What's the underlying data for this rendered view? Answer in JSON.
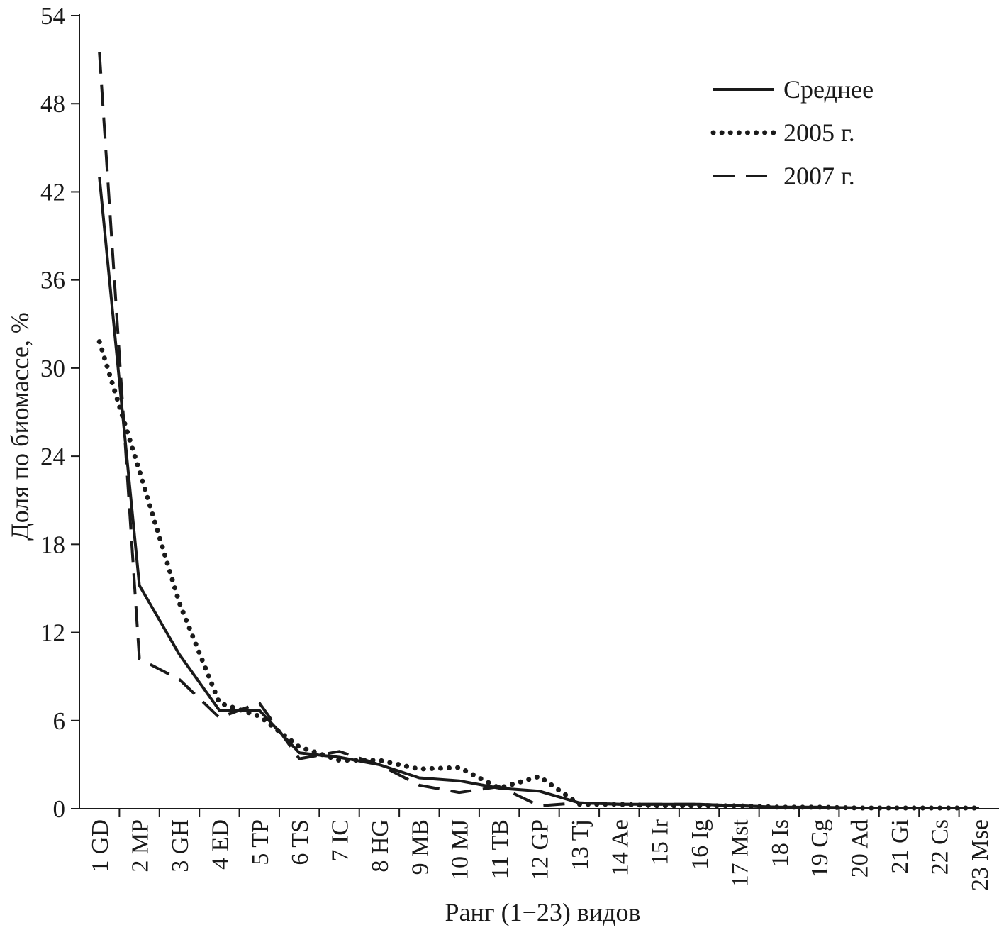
{
  "chart_data": {
    "type": "line",
    "title": "",
    "xlabel": "Ранг (1−23) видов",
    "ylabel": "Доля по биомассе, %",
    "ylim": [
      0,
      54
    ],
    "yticks": [
      0,
      6,
      12,
      18,
      24,
      30,
      36,
      42,
      48,
      54
    ],
    "grid": false,
    "legend_position": "top-right",
    "categories": [
      "1 GD",
      "2 MP",
      "3 GH",
      "4 ED",
      "5 TP",
      "6 TS",
      "7 IC",
      "8 HG",
      "9 MB",
      "10 MJ",
      "11 TB",
      "12 GP",
      "13 Tj",
      "14 Ae",
      "15 Ir",
      "16 Ig",
      "17 Mst",
      "18 Is",
      "19 Cg",
      "20 Ad",
      "21 Gi",
      "22 Cs",
      "23 Mse"
    ],
    "series": [
      {
        "name": "Среднее",
        "style": "solid",
        "color": "#1a1a1a",
        "values": [
          43,
          15.2,
          10.5,
          6.7,
          6.7,
          3.8,
          3.5,
          3.0,
          2.1,
          1.9,
          1.4,
          1.2,
          0.4,
          0.3,
          0.3,
          0.3,
          0.2,
          0.1,
          0.1,
          0.05,
          0.05,
          0.05,
          0.05
        ]
      },
      {
        "name": "2005 г.",
        "style": "dotted",
        "color": "#1a1a1a",
        "values": [
          31.8,
          23.0,
          14.0,
          7.2,
          6.3,
          4.2,
          3.3,
          3.3,
          2.7,
          2.8,
          1.4,
          2.2,
          0.3,
          0.3,
          0.2,
          0.2,
          0.2,
          0.1,
          0.1,
          0.05,
          0.05,
          0.05,
          0.05
        ]
      },
      {
        "name": "2007 г.",
        "style": "dashed",
        "color": "#1a1a1a",
        "values": [
          51.5,
          10.2,
          8.8,
          6.2,
          7.2,
          3.4,
          3.9,
          3.0,
          1.6,
          1.1,
          1.5,
          0.2,
          0.4,
          0.3,
          0.3,
          0.3,
          0.2,
          0.1,
          0.1,
          0.05,
          0.05,
          0.05,
          0.05
        ]
      }
    ]
  }
}
